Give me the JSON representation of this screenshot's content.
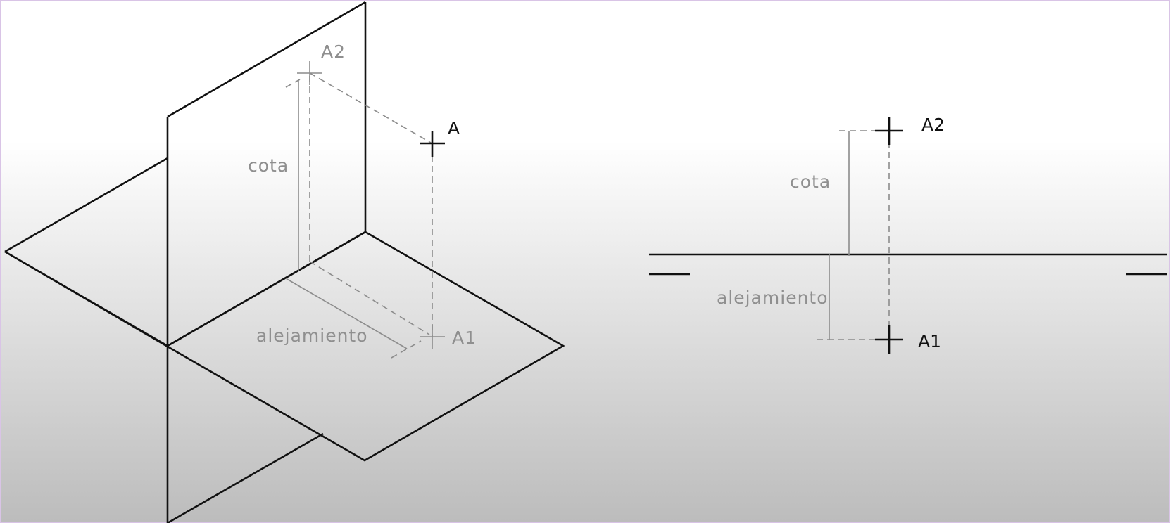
{
  "colors": {
    "background_top": "#ffffff",
    "background_bottom": "#bcbcbc",
    "ink": "#111111",
    "gray_ink": "#8c8c8c",
    "frame": "#d9c4e6"
  },
  "isometric_view": {
    "point_label": "A",
    "vertical_projection_label": "A2",
    "horizontal_projection_label": "A1",
    "height_label": "cota",
    "depth_label": "alejamiento"
  },
  "orthographic_view": {
    "vertical_projection_label": "A2",
    "horizontal_projection_label": "A1",
    "height_label": "cota",
    "depth_label": "alejamiento"
  }
}
